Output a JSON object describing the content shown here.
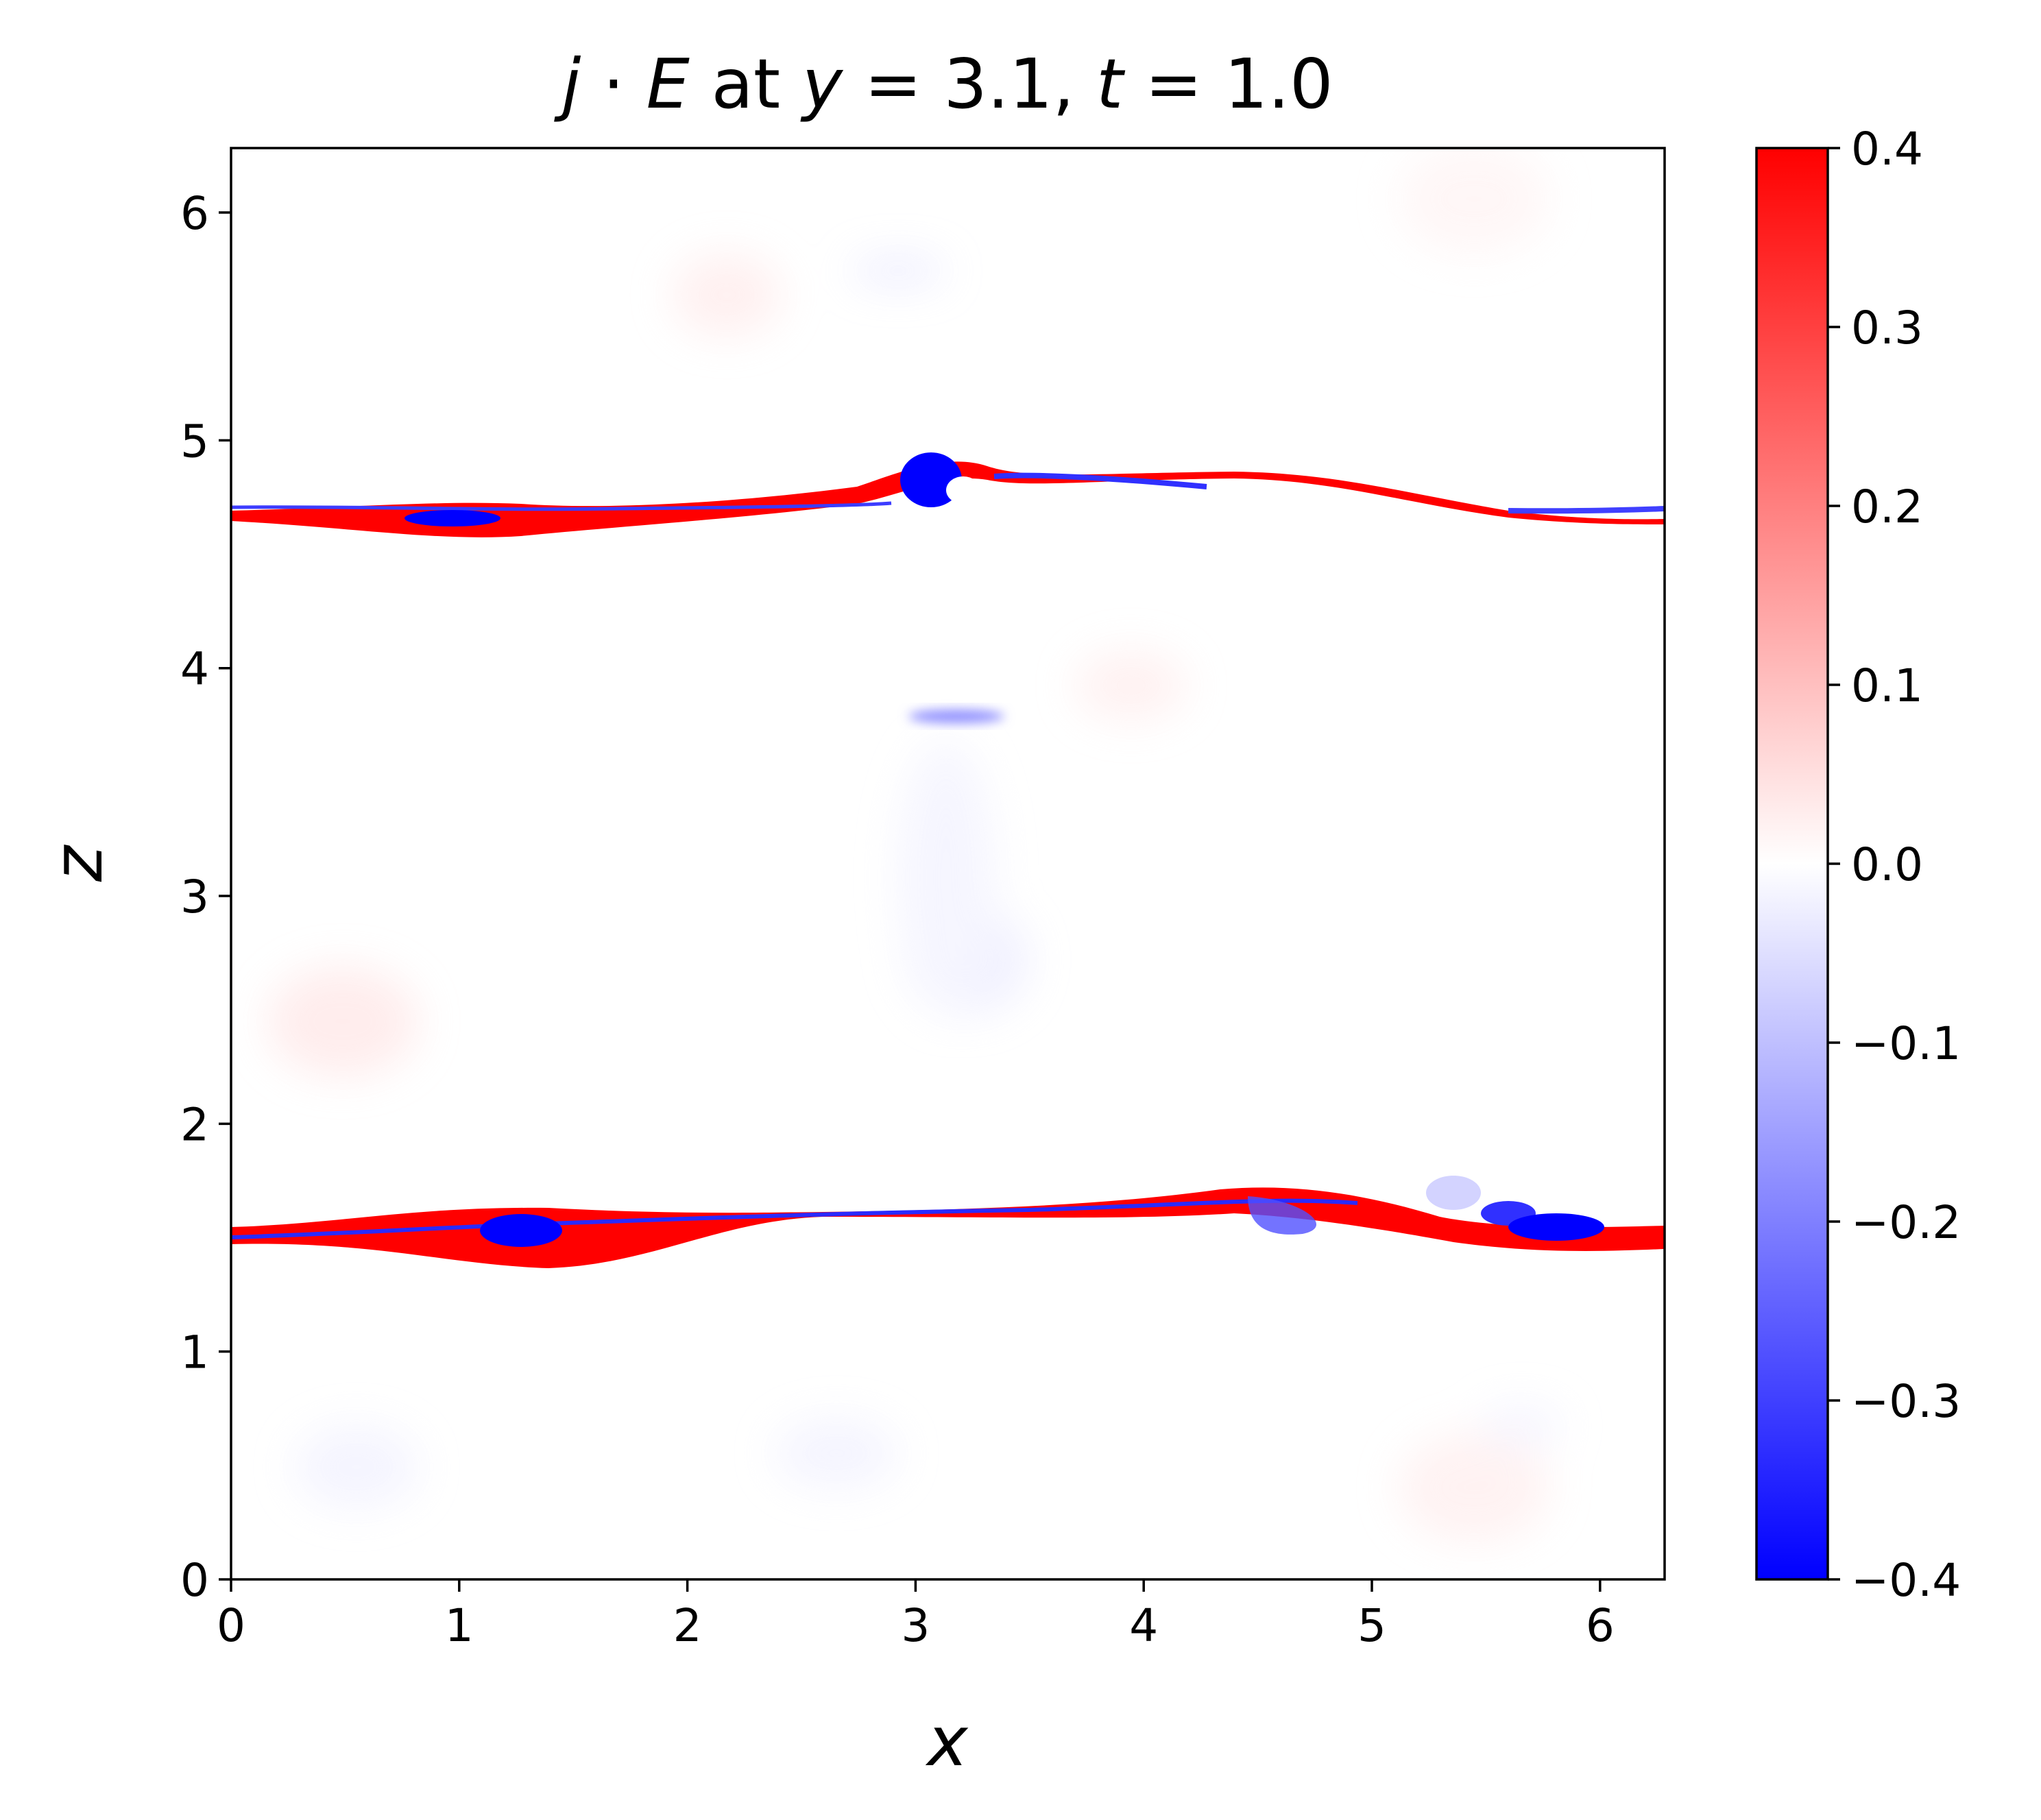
{
  "chart_data": {
    "type": "heatmap",
    "title": {
      "parts": [
        {
          "text": "j",
          "italic": true
        },
        {
          "text": " · ",
          "italic": false
        },
        {
          "text": "E",
          "italic": true
        },
        {
          "text": " at ",
          "italic": false
        },
        {
          "text": "y",
          "italic": true
        },
        {
          "text": " = 3.1, ",
          "italic": false
        },
        {
          "text": "t",
          "italic": true
        },
        {
          "text": " = 1.0",
          "italic": false
        }
      ]
    },
    "xlabel": "x",
    "ylabel": "z",
    "xlim": [
      0,
      6.283
    ],
    "ylim": [
      0,
      6.283
    ],
    "xticks": [
      0,
      1,
      2,
      3,
      4,
      5,
      6
    ],
    "xtick_labels": [
      "0",
      "1",
      "2",
      "3",
      "4",
      "5",
      "6"
    ],
    "yticks": [
      0,
      1,
      2,
      3,
      4,
      5,
      6
    ],
    "ytick_labels": [
      "0",
      "1",
      "2",
      "3",
      "4",
      "5",
      "6"
    ],
    "colormap": "bwr",
    "colormap_colors": {
      "low": "#0000ff",
      "mid": "#ffffff",
      "high": "#ff0000"
    },
    "colorbar": {
      "vmin": -0.4,
      "vmax": 0.4,
      "ticks": [
        -0.4,
        -0.3,
        -0.2,
        -0.1,
        0.0,
        0.1,
        0.2,
        0.3,
        0.4
      ],
      "tick_labels": [
        "−0.4",
        "−0.3",
        "−0.2",
        "−0.1",
        "0.0",
        "0.1",
        "0.2",
        "0.3",
        "0.4"
      ]
    },
    "features": [
      {
        "kind": "current_sheet",
        "z_profile": [
          [
            0,
            4.66
          ],
          [
            1,
            4.62
          ],
          [
            2,
            4.7
          ],
          [
            3,
            4.8
          ],
          [
            4,
            4.86
          ],
          [
            5,
            4.74
          ],
          [
            6.283,
            4.67
          ]
        ],
        "value": 0.4
      },
      {
        "kind": "current_sheet",
        "z_profile": [
          [
            0,
            1.52
          ],
          [
            1,
            1.55
          ],
          [
            2,
            1.59
          ],
          [
            3,
            1.62
          ],
          [
            4,
            1.67
          ],
          [
            4.5,
            1.72
          ],
          [
            5,
            1.64
          ],
          [
            6.283,
            1.52
          ]
        ],
        "value": 0.4
      },
      {
        "kind": "blob",
        "x": 1.1,
        "z": 4.64,
        "value": -0.4
      },
      {
        "kind": "blob",
        "x": 3.05,
        "z": 4.8,
        "value": -0.4
      },
      {
        "kind": "blob",
        "x": 1.3,
        "z": 1.54,
        "value": -0.4
      },
      {
        "kind": "blob",
        "x": 5.75,
        "z": 1.57,
        "value": -0.4
      },
      {
        "kind": "blob",
        "x": 3.1,
        "z": 3.8,
        "value": -0.15
      }
    ]
  }
}
